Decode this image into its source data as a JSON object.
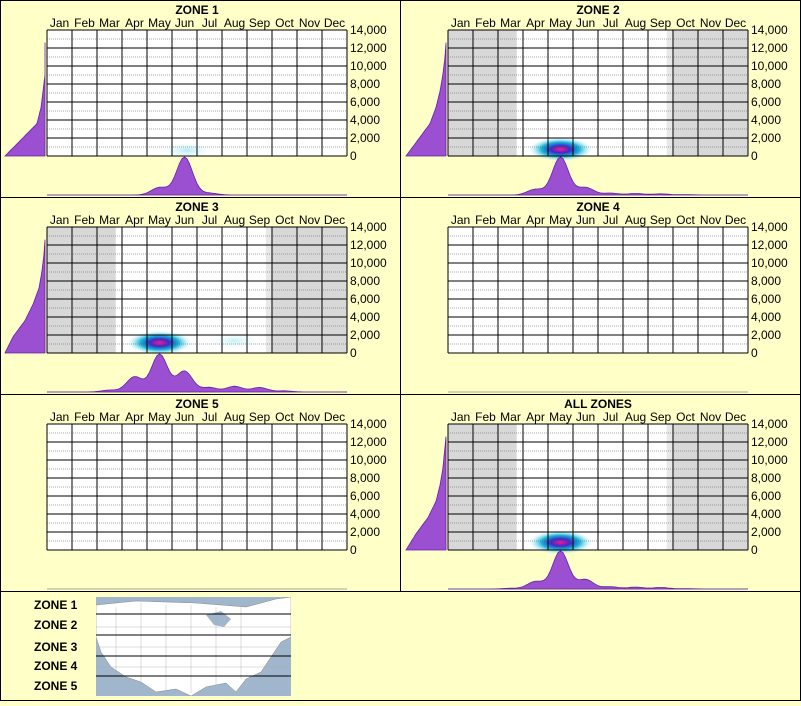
{
  "page": {
    "background": "#ffffc8",
    "grid_background": "#ffffff",
    "shade_color": "#d8d8d8",
    "fill_color": "#9b4fd1",
    "fill_outline": "#6a1fa8"
  },
  "chart_data": [
    {
      "type": "heatmap",
      "title": "ZONE 1",
      "x_categories": [
        "Jan",
        "Feb",
        "Mar",
        "Apr",
        "May",
        "Jun",
        "Jul",
        "Aug",
        "Sep",
        "Oct",
        "Nov",
        "Dec"
      ],
      "y_ticks": [
        "14,000",
        "12,000",
        "10,000",
        "8,000",
        "6,000",
        "4,000",
        "2,000",
        "0"
      ],
      "ylim": [
        0,
        14000
      ],
      "shaded_months": [],
      "hotspots": [
        {
          "month": 5.6,
          "elev": 200,
          "intensity": 0.35
        }
      ],
      "month_dist": [
        0,
        0,
        0,
        0,
        0.2,
        1,
        0.05,
        0,
        0,
        0,
        0,
        0
      ],
      "elev_dist": [
        1,
        0.6,
        0.2,
        0.1,
        0.05,
        0,
        0,
        0
      ]
    },
    {
      "type": "heatmap",
      "title": "ZONE 2",
      "x_categories": [
        "Jan",
        "Feb",
        "Mar",
        "Apr",
        "May",
        "Jun",
        "Jul",
        "Aug",
        "Sep",
        "Oct",
        "Nov",
        "Dec"
      ],
      "y_ticks": [
        "14,000",
        "12,000",
        "10,000",
        "8,000",
        "6,000",
        "4,000",
        "2,000",
        "0"
      ],
      "ylim": [
        0,
        14000
      ],
      "shaded_months": [
        1,
        2,
        3,
        10,
        11,
        12
      ],
      "hotspots": [
        {
          "month": 4.5,
          "elev": 300,
          "intensity": 1
        }
      ],
      "month_dist": [
        0,
        0,
        0,
        0.15,
        1,
        0.2,
        0.05,
        0.04,
        0.03,
        0.01,
        0,
        0
      ],
      "elev_dist": [
        1,
        0.7,
        0.4,
        0.25,
        0.15,
        0.08,
        0.03,
        0
      ]
    },
    {
      "type": "heatmap",
      "title": "ZONE 3",
      "x_categories": [
        "Jan",
        "Feb",
        "Mar",
        "Apr",
        "May",
        "Jun",
        "Jul",
        "Aug",
        "Sep",
        "Oct",
        "Nov",
        "Dec"
      ],
      "y_ticks": [
        "14,000",
        "12,000",
        "10,000",
        "8,000",
        "6,000",
        "4,000",
        "2,000",
        "0"
      ],
      "ylim": [
        0,
        14000
      ],
      "shaded_months": [
        1,
        2,
        3,
        10,
        11,
        12
      ],
      "hotspots": [
        {
          "month": 4.5,
          "elev": 700,
          "intensity": 1
        },
        {
          "month": 7.5,
          "elev": 900,
          "intensity": 0.25
        }
      ],
      "month_dist": [
        0,
        0,
        0.05,
        0.4,
        1,
        0.55,
        0.12,
        0.15,
        0.12,
        0.03,
        0,
        0
      ],
      "elev_dist": [
        1,
        0.8,
        0.5,
        0.3,
        0.15,
        0.08,
        0.03,
        0
      ]
    },
    {
      "type": "heatmap",
      "title": "ZONE 4",
      "x_categories": [
        "Jan",
        "Feb",
        "Mar",
        "Apr",
        "May",
        "Jun",
        "Jul",
        "Aug",
        "Sep",
        "Oct",
        "Nov",
        "Dec"
      ],
      "y_ticks": [
        "14,000",
        "12,000",
        "10,000",
        "8,000",
        "6,000",
        "4,000",
        "2,000",
        "0"
      ],
      "ylim": [
        0,
        14000
      ],
      "shaded_months": [],
      "hotspots": [],
      "month_dist": [
        0,
        0,
        0,
        0,
        0,
        0,
        0,
        0,
        0,
        0,
        0,
        0
      ],
      "elev_dist": [
        0,
        0,
        0,
        0,
        0,
        0,
        0,
        0
      ]
    },
    {
      "type": "heatmap",
      "title": "ZONE 5",
      "x_categories": [
        "Jan",
        "Feb",
        "Mar",
        "Apr",
        "May",
        "Jun",
        "Jul",
        "Aug",
        "Sep",
        "Oct",
        "Nov",
        "Dec"
      ],
      "y_ticks": [
        "14,000",
        "12,000",
        "10,000",
        "8,000",
        "6,000",
        "4,000",
        "2,000",
        "0"
      ],
      "ylim": [
        0,
        14000
      ],
      "shaded_months": [],
      "hotspots": [],
      "month_dist": [
        0,
        0,
        0,
        0,
        0,
        0,
        0,
        0,
        0,
        0,
        0,
        0
      ],
      "elev_dist": [
        0,
        0,
        0,
        0,
        0,
        0,
        0,
        0
      ]
    },
    {
      "type": "heatmap",
      "title": "ALL ZONES",
      "x_categories": [
        "Jan",
        "Feb",
        "Mar",
        "Apr",
        "May",
        "Jun",
        "Jul",
        "Aug",
        "Sep",
        "Oct",
        "Nov",
        "Dec"
      ],
      "y_ticks": [
        "14,000",
        "12,000",
        "10,000",
        "8,000",
        "6,000",
        "4,000",
        "2,000",
        "0"
      ],
      "ylim": [
        0,
        14000
      ],
      "shaded_months": [
        1,
        2,
        3,
        10,
        11,
        12
      ],
      "hotspots": [
        {
          "month": 4.5,
          "elev": 400,
          "intensity": 1
        }
      ],
      "month_dist": [
        0,
        0,
        0.02,
        0.2,
        1,
        0.25,
        0.06,
        0.05,
        0.04,
        0.01,
        0,
        0
      ],
      "elev_dist": [
        1,
        0.75,
        0.45,
        0.25,
        0.15,
        0.08,
        0.04,
        0
      ]
    }
  ],
  "legend": {
    "zones": [
      "ZONE 1",
      "ZONE 2",
      "ZONE 3",
      "ZONE 4",
      "ZONE 5"
    ]
  }
}
